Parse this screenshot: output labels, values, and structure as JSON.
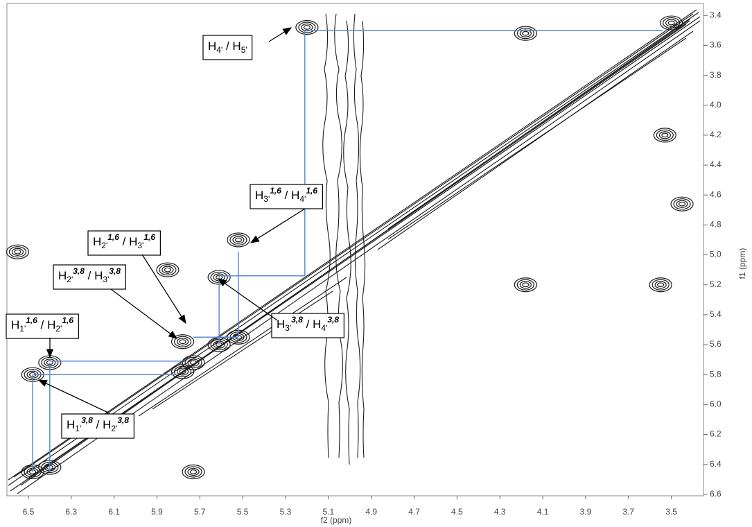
{
  "chart_data": {
    "type": "contour",
    "x_label": "f2 (ppm)",
    "y_label": "f1 (ppm)",
    "xlim": [
      6.6,
      3.35
    ],
    "ylim": [
      3.32,
      6.61
    ],
    "xticks": [
      6.5,
      6.3,
      6.1,
      5.9,
      5.7,
      5.5,
      5.3,
      5.1,
      {
        "value": 4.9,
        "label": "4.9"
      },
      4.7,
      4.5,
      4.3,
      4.1,
      3.9,
      3.7,
      3.5
    ],
    "yticks": [
      3.4,
      3.6,
      3.8,
      {
        "value": 4,
        "label": "4.0"
      },
      4.2,
      4.4,
      4.6,
      4.8,
      {
        "value": 5,
        "label": "5.0"
      },
      5.2,
      5.4,
      5.6,
      5.8,
      {
        "value": 6,
        "label": "6.0"
      },
      6.2,
      6.4,
      6.6
    ],
    "contour_color": "#1a1a1a",
    "peaks": {
      "x": [
        6.48,
        6.4,
        5.78,
        5.73,
        5.61,
        5.52,
        5.2,
        4.18,
        5.52,
        5.61,
        5.78,
        6.48,
        6.4,
        4.18,
        3.55,
        3.53,
        3.45,
        3.5,
        5.73,
        6.55,
        5.85
      ],
      "y": [
        6.45,
        6.42,
        5.78,
        5.72,
        5.6,
        5.55,
        3.48,
        3.52,
        4.9,
        5.15,
        5.58,
        5.8,
        5.72,
        5.2,
        5.2,
        4.2,
        4.66,
        3.45,
        6.45,
        4.98,
        5.1
      ]
    },
    "series": [
      {
        "color": "#5b8bd0",
        "x": [
          5.2,
          3.54,
          null,
          5.21,
          5.21,
          null,
          5.61,
          5.21,
          null,
          5.61,
          5.61,
          null,
          5.52,
          5.52,
          null,
          5.73,
          5.52,
          null,
          6.4,
          5.78,
          null,
          6.48,
          5.8,
          null,
          6.48,
          6.48,
          null,
          6.4,
          6.4
        ],
        "y": [
          3.5,
          3.5,
          null,
          3.5,
          5.14,
          null,
          5.14,
          5.14,
          null,
          5.14,
          5.6,
          null,
          4.98,
          5.55,
          null,
          5.55,
          5.55,
          null,
          5.71,
          5.71,
          null,
          5.8,
          5.8,
          null,
          5.8,
          6.45,
          null,
          5.72,
          6.45
        ]
      }
    ],
    "annotations": [
      {
        "parts": [
          {
            "t": "H"
          },
          {
            "sub": "4'"
          },
          {
            "t": " / H"
          },
          {
            "sub": "5'"
          }
        ]
      },
      {
        "parts": [
          {
            "t": "H"
          },
          {
            "sub": "3'"
          },
          {
            "sup": "1,6"
          },
          {
            "t": " / H"
          },
          {
            "sub": "4'"
          },
          {
            "sup": "1,6"
          }
        ]
      },
      {
        "parts": [
          {
            "t": "H"
          },
          {
            "sub": "2'"
          },
          {
            "sup": "1,6"
          },
          {
            "t": " / H"
          },
          {
            "sub": "3'"
          },
          {
            "sup": "1,6"
          }
        ]
      },
      {
        "parts": [
          {
            "t": "H"
          },
          {
            "sub": "2'"
          },
          {
            "sup": "3,8"
          },
          {
            "t": " / H"
          },
          {
            "sub": "3'"
          },
          {
            "sup": "3,8"
          }
        ]
      },
      {
        "parts": [
          {
            "t": "H"
          },
          {
            "sub": "1'"
          },
          {
            "sup": "1,6"
          },
          {
            "t": " / H"
          },
          {
            "sub": "2'"
          },
          {
            "sup": "1,6"
          }
        ]
      },
      {
        "parts": [
          {
            "t": "H"
          },
          {
            "sub": "3'"
          },
          {
            "sup": "3,8"
          },
          {
            "t": " / H"
          },
          {
            "sub": "4'"
          },
          {
            "sup": "3,8"
          }
        ]
      },
      {
        "parts": [
          {
            "t": "H"
          },
          {
            "sub": "1'"
          },
          {
            "sup": "3,8"
          },
          {
            "t": " / H"
          },
          {
            "sub": "2'"
          },
          {
            "sup": "3,8"
          }
        ]
      }
    ]
  }
}
